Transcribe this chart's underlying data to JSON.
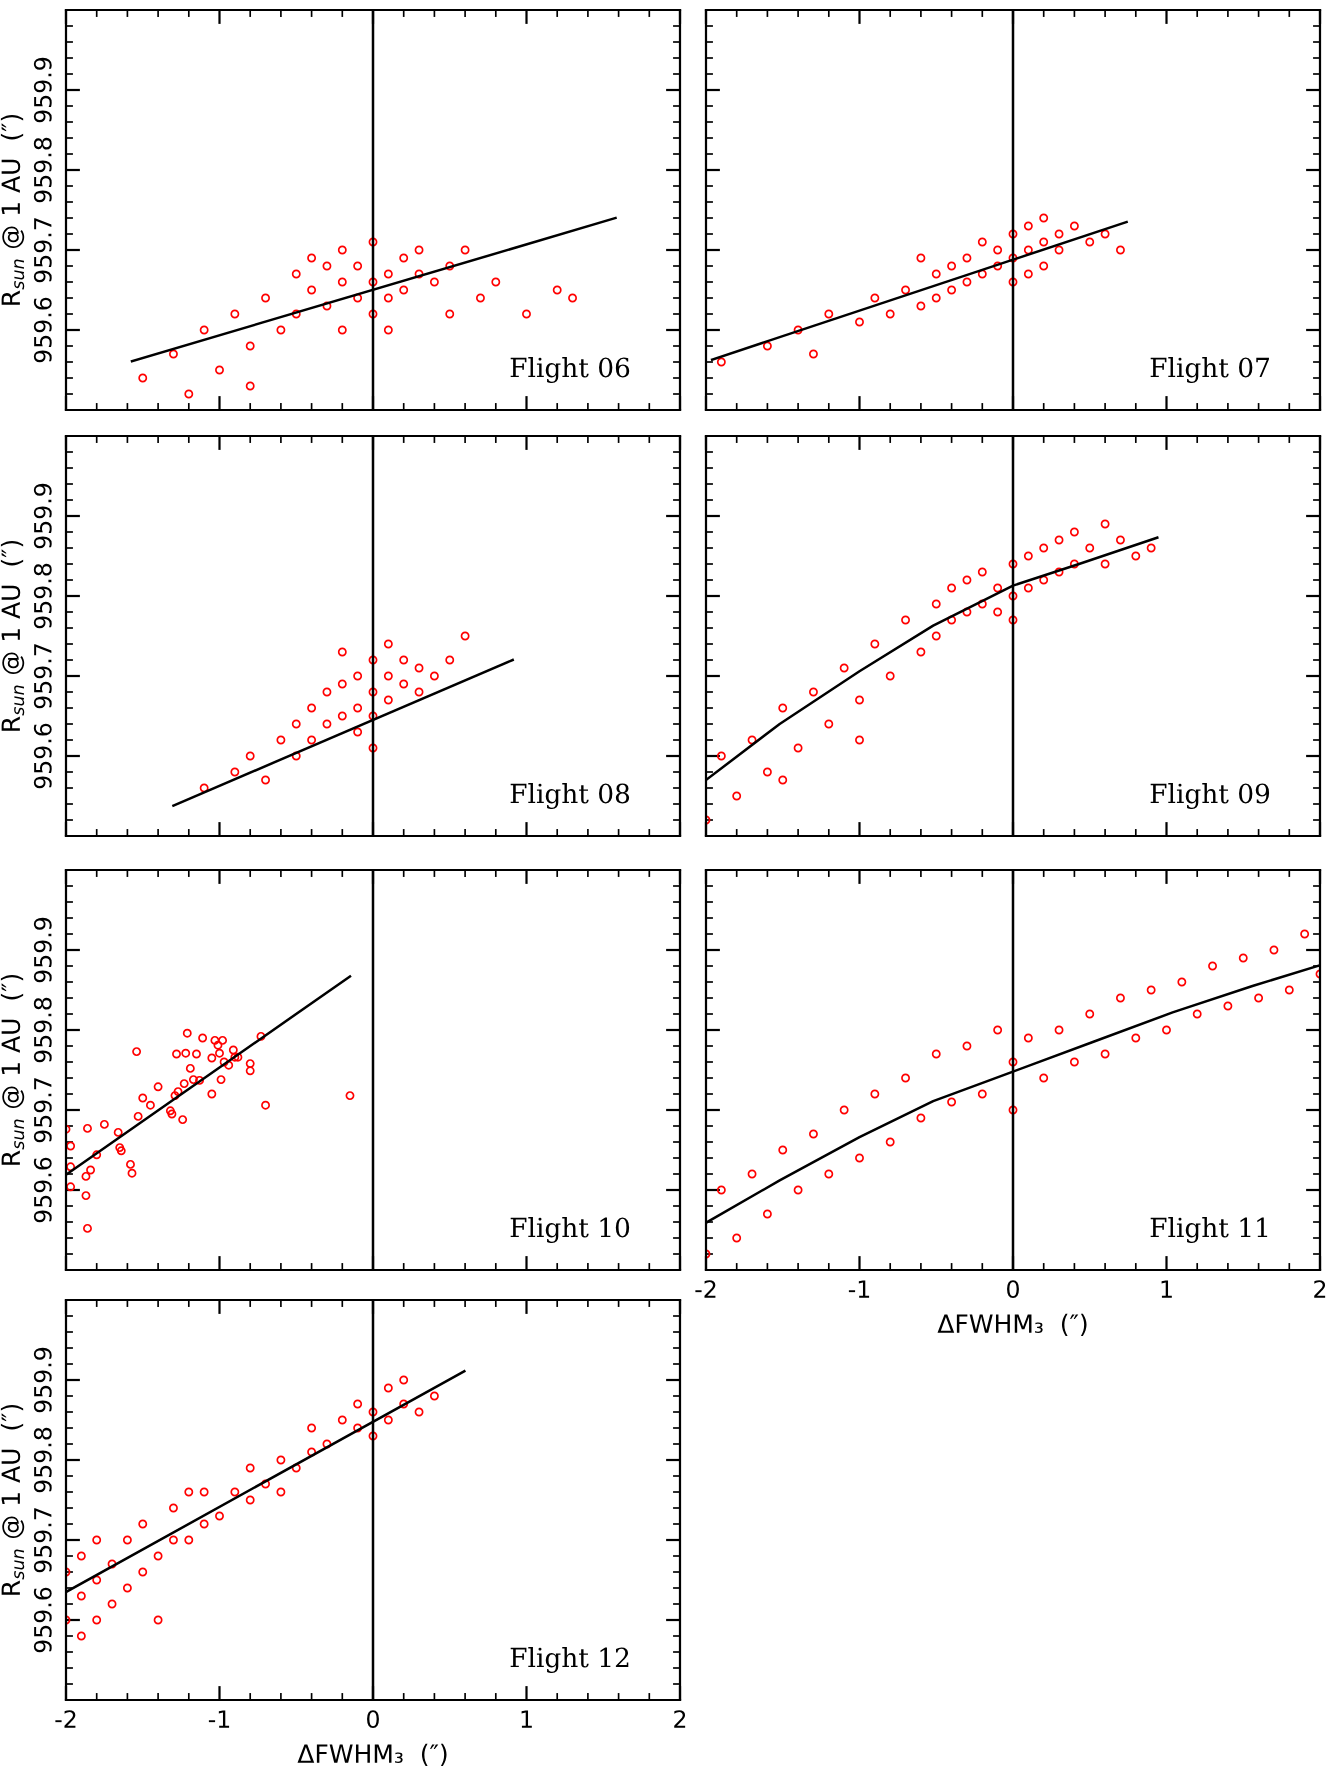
{
  "chart_data": [
    {
      "type": "scatter",
      "xlim": [
        -2,
        2
      ],
      "ylim": [
        959.5,
        960.0
      ],
      "xticks": [
        -2,
        -1,
        0,
        1,
        2
      ],
      "yticks": [
        959.6,
        959.7,
        959.8,
        959.9
      ],
      "tick_labels": "y",
      "ylabel": "R$_{sun}$ @ 1 AU  (″)",
      "annotations": [
        "Flight 06"
      ],
      "ref_lines": [
        {
          "axis": "x",
          "value": 0,
          "color": "#000000"
        }
      ],
      "series": [
        {
          "type": "scatter",
          "color": "#ff0000",
          "marker": "circle",
          "x": [
            -1.5,
            -1.3,
            -1.2,
            -1.1,
            -1.0,
            -0.9,
            -0.8,
            -0.7,
            -0.6,
            -0.5,
            -0.5,
            -0.4,
            -0.4,
            -0.3,
            -0.3,
            -0.2,
            -0.2,
            -0.1,
            -0.1,
            0.0,
            0.0,
            0.0,
            0.1,
            0.1,
            0.2,
            0.2,
            0.3,
            0.3,
            0.4,
            0.5,
            0.6,
            0.7,
            0.8,
            1.0,
            1.2,
            1.3,
            -0.2,
            0.1,
            -0.8,
            0.5
          ],
          "values": [
            959.54,
            959.57,
            959.52,
            959.6,
            959.55,
            959.62,
            959.58,
            959.64,
            959.6,
            959.67,
            959.62,
            959.65,
            959.69,
            959.63,
            959.68,
            959.66,
            959.7,
            959.64,
            959.68,
            959.66,
            959.62,
            959.71,
            959.67,
            959.64,
            959.69,
            959.65,
            959.67,
            959.7,
            959.66,
            959.68,
            959.7,
            959.64,
            959.66,
            959.62,
            959.65,
            959.64,
            959.6,
            959.6,
            959.53,
            959.62
          ]
        },
        {
          "type": "line",
          "color": "#000000",
          "marker": "none",
          "x": [
            -1.57,
            1.58
          ],
          "values": [
            959.561,
            959.74
          ]
        }
      ]
    },
    {
      "type": "scatter",
      "xlim": [
        -2,
        2
      ],
      "ylim": [
        959.5,
        960.0
      ],
      "xticks": [
        -2,
        -1,
        0,
        1,
        2
      ],
      "yticks": [
        959.6,
        959.7,
        959.8,
        959.9
      ],
      "tick_labels": false,
      "annotations": [
        "Flight 07"
      ],
      "ref_lines": [
        {
          "axis": "x",
          "value": 0,
          "color": "#000000"
        }
      ],
      "series": [
        {
          "type": "scatter",
          "color": "#ff0000",
          "marker": "circle",
          "x": [
            -1.9,
            -1.6,
            -1.4,
            -1.3,
            -1.2,
            -1.0,
            -0.9,
            -0.8,
            -0.7,
            -0.6,
            -0.5,
            -0.5,
            -0.4,
            -0.4,
            -0.3,
            -0.3,
            -0.2,
            -0.2,
            -0.1,
            -0.1,
            0.0,
            0.0,
            0.0,
            0.1,
            0.1,
            0.1,
            0.2,
            0.2,
            0.3,
            0.3,
            0.4,
            0.5,
            0.6,
            0.7,
            -0.6,
            0.2
          ],
          "values": [
            959.56,
            959.58,
            959.6,
            959.57,
            959.62,
            959.61,
            959.64,
            959.62,
            959.65,
            959.63,
            959.67,
            959.64,
            959.68,
            959.65,
            959.69,
            959.66,
            959.71,
            959.67,
            959.7,
            959.68,
            959.72,
            959.69,
            959.66,
            959.73,
            959.7,
            959.67,
            959.71,
            959.74,
            959.7,
            959.72,
            959.73,
            959.71,
            959.72,
            959.7,
            959.69,
            959.68
          ]
        },
        {
          "type": "line",
          "color": "#000000",
          "marker": "none",
          "x": [
            -1.96,
            0.74
          ],
          "values": [
            959.563,
            959.735
          ]
        }
      ]
    },
    {
      "type": "scatter",
      "xlim": [
        -2,
        2
      ],
      "ylim": [
        959.5,
        960.0
      ],
      "xticks": [
        -2,
        -1,
        0,
        1,
        2
      ],
      "yticks": [
        959.6,
        959.7,
        959.8,
        959.9
      ],
      "tick_labels": "y",
      "ylabel": "R$_{sun}$ @ 1 AU  (″)",
      "annotations": [
        "Flight 08"
      ],
      "ref_lines": [
        {
          "axis": "x",
          "value": 0,
          "color": "#000000"
        }
      ],
      "series": [
        {
          "type": "scatter",
          "color": "#ff0000",
          "marker": "circle",
          "x": [
            -1.1,
            -0.9,
            -0.8,
            -0.7,
            -0.6,
            -0.5,
            -0.5,
            -0.4,
            -0.4,
            -0.3,
            -0.3,
            -0.2,
            -0.2,
            -0.1,
            -0.1,
            -0.1,
            0.0,
            0.0,
            0.0,
            0.1,
            0.1,
            0.1,
            0.2,
            0.2,
            0.3,
            0.3,
            0.4,
            0.5,
            0.6,
            -0.2,
            0.0
          ],
          "values": [
            959.56,
            959.58,
            959.6,
            959.57,
            959.62,
            959.6,
            959.64,
            959.62,
            959.66,
            959.64,
            959.68,
            959.65,
            959.69,
            959.66,
            959.7,
            959.63,
            959.68,
            959.72,
            959.65,
            959.7,
            959.67,
            959.74,
            959.69,
            959.72,
            959.71,
            959.68,
            959.7,
            959.72,
            959.75,
            959.73,
            959.61
          ]
        },
        {
          "type": "line",
          "color": "#000000",
          "marker": "none",
          "x": [
            -1.3,
            0.91
          ],
          "values": [
            959.538,
            959.72
          ]
        }
      ]
    },
    {
      "type": "scatter",
      "xlim": [
        -2,
        2
      ],
      "ylim": [
        959.5,
        960.0
      ],
      "xticks": [
        -2,
        -1,
        0,
        1,
        2
      ],
      "yticks": [
        959.6,
        959.7,
        959.8,
        959.9
      ],
      "tick_labels": false,
      "annotations": [
        "Flight 09"
      ],
      "ref_lines": [
        {
          "axis": "x",
          "value": 0,
          "color": "#000000"
        }
      ],
      "series": [
        {
          "type": "scatter",
          "color": "#ff0000",
          "marker": "circle",
          "x": [
            -2.0,
            -1.9,
            -1.8,
            -1.7,
            -1.6,
            -1.5,
            -1.4,
            -1.3,
            -1.2,
            -1.1,
            -1.0,
            -0.9,
            -0.8,
            -0.7,
            -0.6,
            -0.5,
            -0.5,
            -0.4,
            -0.4,
            -0.3,
            -0.3,
            -0.2,
            -0.2,
            -0.1,
            -0.1,
            0.0,
            0.0,
            0.0,
            0.1,
            0.1,
            0.2,
            0.2,
            0.3,
            0.3,
            0.4,
            0.4,
            0.5,
            0.6,
            0.6,
            0.7,
            0.8,
            0.9,
            -1.5,
            -1.0
          ],
          "values": [
            959.52,
            959.6,
            959.55,
            959.62,
            959.58,
            959.66,
            959.61,
            959.68,
            959.64,
            959.71,
            959.67,
            959.74,
            959.7,
            959.77,
            959.73,
            959.79,
            959.75,
            959.81,
            959.77,
            959.82,
            959.78,
            959.83,
            959.79,
            959.81,
            959.78,
            959.84,
            959.8,
            959.77,
            959.85,
            959.81,
            959.86,
            959.82,
            959.87,
            959.83,
            959.88,
            959.84,
            959.86,
            959.89,
            959.84,
            959.87,
            959.85,
            959.86,
            959.57,
            959.62
          ]
        },
        {
          "type": "line",
          "color": "#000000",
          "marker": "none",
          "x": [
            -2.0,
            -1.52,
            -1.0,
            -0.52,
            0.0,
            0.43,
            0.94
          ],
          "values": [
            959.57,
            959.64,
            959.706,
            959.763,
            959.813,
            959.84,
            959.873
          ]
        }
      ]
    },
    {
      "type": "scatter",
      "xlim": [
        -2,
        2
      ],
      "ylim": [
        959.5,
        960.0
      ],
      "xticks": [
        -2,
        -1,
        0,
        1,
        2
      ],
      "yticks": [
        959.6,
        959.7,
        959.8,
        959.9
      ],
      "tick_labels": "y",
      "ylabel": "R$_{sun}$ @ 1 AU  (″)",
      "annotations": [
        "Flight 10"
      ],
      "ref_lines": [
        {
          "axis": "x",
          "value": 0,
          "color": "#000000"
        }
      ],
      "series": [
        {
          "type": "scatter",
          "color": "#ff0000",
          "marker": "circle",
          "x": [
            -2.0,
            -1.97,
            -1.97,
            -1.97,
            -1.86,
            -1.87,
            -1.87,
            -1.86,
            -1.84,
            -1.8,
            -1.75,
            -1.66,
            -1.65,
            -1.64,
            -1.58,
            -1.57,
            -1.54,
            -1.53,
            -1.5,
            -1.45,
            -1.4,
            -1.32,
            -1.31,
            -1.29,
            -1.27,
            -1.24,
            -1.23,
            -1.22,
            -1.21,
            -1.19,
            -1.17,
            -1.28,
            -1.15,
            -1.13,
            -1.11,
            -1.05,
            -1.05,
            -1.03,
            -1.01,
            -1.0,
            -0.99,
            -0.98,
            -0.97,
            -0.94,
            -0.91,
            -0.9,
            -0.88,
            -0.8,
            -0.8,
            -0.73,
            -0.7,
            -0.15
          ],
          "values": [
            959.676,
            959.655,
            959.629,
            959.604,
            959.677,
            959.617,
            959.593,
            959.552,
            959.625,
            959.644,
            959.682,
            959.672,
            959.653,
            959.649,
            959.632,
            959.621,
            959.773,
            959.692,
            959.715,
            959.706,
            959.729,
            959.699,
            959.695,
            959.718,
            959.723,
            959.688,
            959.733,
            959.771,
            959.796,
            959.752,
            959.738,
            959.77,
            959.77,
            959.737,
            959.79,
            959.765,
            959.72,
            959.787,
            959.781,
            959.771,
            959.738,
            959.787,
            959.76,
            959.756,
            959.775,
            959.766,
            959.766,
            959.758,
            959.749,
            959.792,
            959.706,
            959.718
          ]
        },
        {
          "type": "line",
          "color": "#000000",
          "marker": "none",
          "x": [
            -2.0,
            -0.15
          ],
          "values": [
            959.619,
            959.867
          ]
        }
      ]
    },
    {
      "type": "scatter",
      "xlim": [
        -2,
        2
      ],
      "ylim": [
        959.5,
        960.0
      ],
      "xticks": [
        -2,
        -1,
        0,
        1,
        2
      ],
      "yticks": [
        959.6,
        959.7,
        959.8,
        959.9
      ],
      "tick_labels": "x",
      "xlabel": "ΔFWHM₃  (″)",
      "annotations": [
        "Flight 11"
      ],
      "ref_lines": [
        {
          "axis": "x",
          "value": 0,
          "color": "#000000"
        }
      ],
      "series": [
        {
          "type": "scatter",
          "color": "#ff0000",
          "marker": "circle",
          "x": [
            -2.0,
            -1.9,
            -1.8,
            -1.7,
            -1.6,
            -1.5,
            -1.4,
            -1.3,
            -1.2,
            -1.1,
            -1.0,
            -0.9,
            -0.8,
            -0.7,
            -0.6,
            -0.5,
            -0.4,
            -0.3,
            -0.2,
            -0.1,
            0.0,
            0.0,
            0.1,
            0.2,
            0.3,
            0.4,
            0.5,
            0.6,
            0.7,
            0.8,
            0.9,
            1.0,
            1.1,
            1.2,
            1.3,
            1.4,
            1.5,
            1.6,
            1.7,
            1.8,
            1.9,
            2.0
          ],
          "values": [
            959.52,
            959.6,
            959.54,
            959.62,
            959.57,
            959.65,
            959.6,
            959.67,
            959.62,
            959.7,
            959.64,
            959.72,
            959.66,
            959.74,
            959.69,
            959.77,
            959.71,
            959.78,
            959.72,
            959.8,
            959.76,
            959.7,
            959.79,
            959.74,
            959.8,
            959.76,
            959.82,
            959.77,
            959.84,
            959.79,
            959.85,
            959.8,
            959.86,
            959.82,
            959.88,
            959.83,
            959.89,
            959.84,
            959.9,
            959.85,
            959.92,
            959.87
          ]
        },
        {
          "type": "line",
          "color": "#000000",
          "marker": "none",
          "x": [
            -2.0,
            -1.52,
            -1.0,
            -0.52,
            0.0,
            0.52,
            1.04,
            1.56,
            2.0
          ],
          "values": [
            959.559,
            959.612,
            959.666,
            959.711,
            959.748,
            959.785,
            959.822,
            959.855,
            959.881
          ]
        }
      ]
    },
    {
      "type": "scatter",
      "xlim": [
        -2,
        2
      ],
      "ylim": [
        959.5,
        960.0
      ],
      "xticks": [
        -2,
        -1,
        0,
        1,
        2
      ],
      "yticks": [
        959.6,
        959.7,
        959.8,
        959.9
      ],
      "xlabel": "ΔFWHM₃  (″)",
      "ylabel": "R$_{sun}$ @ 1 AU  (″)",
      "annotations": [
        "Flight 12"
      ],
      "ref_lines": [
        {
          "axis": "x",
          "value": 0,
          "color": "#000000"
        }
      ],
      "series": [
        {
          "type": "scatter",
          "color": "#ff0000",
          "marker": "circle",
          "x": [
            -2.0,
            -2.0,
            -1.9,
            -1.9,
            -1.9,
            -1.8,
            -1.8,
            -1.8,
            -1.7,
            -1.7,
            -1.6,
            -1.6,
            -1.5,
            -1.5,
            -1.4,
            -1.4,
            -1.3,
            -1.3,
            -1.2,
            -1.1,
            -1.1,
            -1.0,
            -0.9,
            -0.8,
            -0.8,
            -0.7,
            -0.6,
            -0.5,
            -0.4,
            -0.4,
            -0.3,
            -0.2,
            -0.1,
            -0.1,
            0.0,
            0.0,
            0.1,
            0.1,
            0.2,
            0.2,
            0.3,
            0.4,
            -1.2,
            -0.6
          ],
          "values": [
            959.6,
            959.66,
            959.58,
            959.63,
            959.68,
            959.6,
            959.65,
            959.7,
            959.62,
            959.67,
            959.64,
            959.7,
            959.66,
            959.72,
            959.6,
            959.68,
            959.7,
            959.74,
            959.7,
            959.72,
            959.76,
            959.73,
            959.76,
            959.75,
            959.79,
            959.77,
            959.8,
            959.79,
            959.81,
            959.84,
            959.82,
            959.85,
            959.84,
            959.87,
            959.83,
            959.86,
            959.85,
            959.89,
            959.87,
            959.9,
            959.86,
            959.88,
            959.76,
            959.76
          ]
        },
        {
          "type": "line",
          "color": "#000000",
          "marker": "none",
          "x": [
            -2.0,
            0.595
          ],
          "values": [
            959.635,
            959.911
          ]
        }
      ]
    }
  ]
}
